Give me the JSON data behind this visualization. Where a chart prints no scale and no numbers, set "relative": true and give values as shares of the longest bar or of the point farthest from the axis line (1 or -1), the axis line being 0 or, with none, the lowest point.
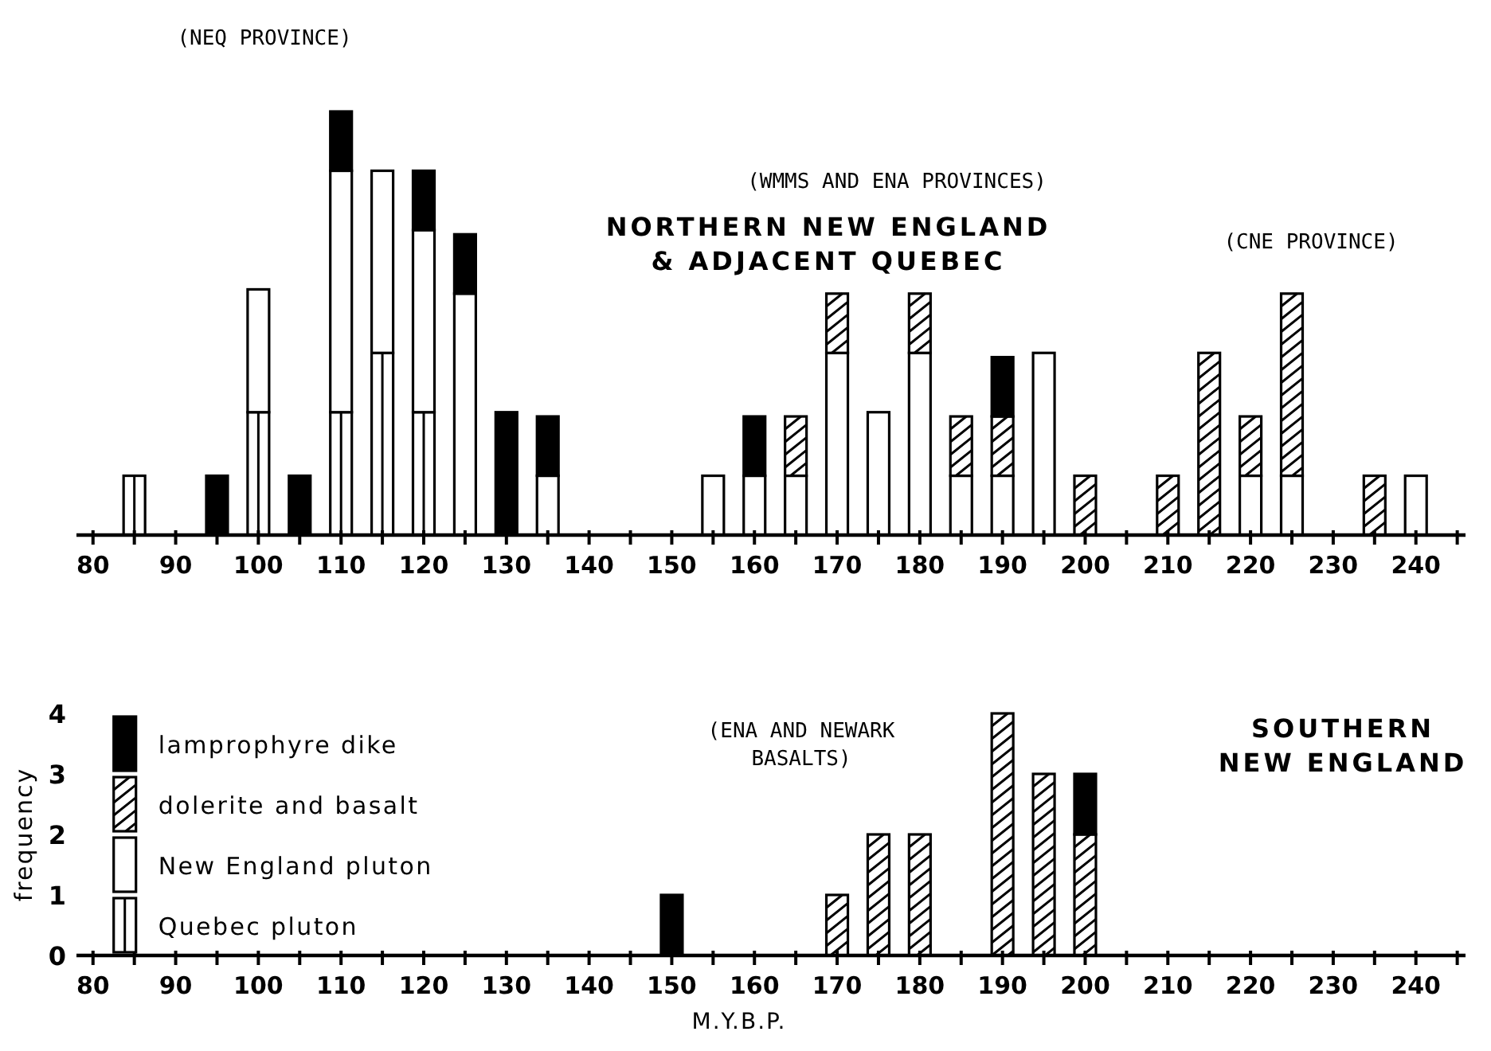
{
  "chart_data": [
    {
      "type": "bar",
      "stacked": true,
      "relative": true,
      "title": "NORTHERN NEW ENGLAND\n& ADJACENT QUEBEC",
      "tick_labels": "x",
      "legend": false,
      "grid": false,
      "x": [
        85,
        95,
        100,
        105,
        110,
        115,
        120,
        125,
        130,
        135,
        155,
        160,
        165,
        170,
        175,
        180,
        185,
        190,
        195,
        200,
        210,
        215,
        220,
        225,
        235,
        240
      ],
      "series": [
        {
          "color": "#ffffff",
          "values": [
            0.14,
            null,
            0.29,
            null,
            0.29,
            0.43,
            0.29,
            null,
            null,
            null,
            null,
            null,
            null,
            null,
            null,
            null,
            null,
            null,
            null,
            null,
            null,
            null,
            null,
            null,
            null,
            null
          ]
        },
        {
          "color": "#ffffff",
          "values": [
            null,
            null,
            0.29,
            null,
            0.57,
            0.43,
            0.43,
            0.57,
            null,
            0.14,
            0.14,
            0.14,
            0.14,
            0.43,
            0.29,
            0.43,
            0.14,
            0.14,
            0.43,
            null,
            null,
            null,
            0.14,
            0.14,
            null,
            0.14
          ]
        },
        {
          "color": "#ffffff",
          "values": [
            null,
            null,
            null,
            null,
            null,
            null,
            null,
            null,
            null,
            null,
            null,
            null,
            0.14,
            0.14,
            null,
            0.14,
            0.14,
            0.14,
            null,
            0.14,
            0.14,
            0.43,
            0.14,
            0.43,
            0.14,
            null
          ]
        },
        {
          "color": "#000000",
          "values": [
            null,
            0.14,
            null,
            0.14,
            0.14,
            null,
            0.14,
            0.14,
            0.29,
            0.14,
            null,
            0.14,
            null,
            null,
            null,
            null,
            null,
            0.14,
            null,
            null,
            null,
            null,
            null,
            null,
            null,
            null
          ]
        }
      ],
      "xlim": [
        78,
        246
      ],
      "xticks": [
        80,
        {
          "value": 85,
          "label": null
        },
        90,
        {
          "value": 95,
          "label": null
        },
        100,
        {
          "value": 105,
          "label": null
        },
        110,
        {
          "value": 115,
          "label": null
        },
        120,
        {
          "value": 125,
          "label": null
        },
        130,
        {
          "value": 135,
          "label": null
        },
        140,
        {
          "value": 145,
          "label": null
        },
        150,
        {
          "value": 155,
          "label": null
        },
        160,
        {
          "value": 165,
          "label": null
        },
        170,
        {
          "value": 175,
          "label": null
        },
        180,
        {
          "value": 185,
          "label": null
        },
        190,
        {
          "value": 195,
          "label": null
        },
        200,
        {
          "value": 205,
          "label": null
        },
        210,
        {
          "value": 215,
          "label": null
        },
        220,
        {
          "value": 225,
          "label": null
        },
        230,
        {
          "value": 235,
          "label": null
        },
        240,
        {
          "value": 245,
          "label": null
        }
      ],
      "annotations": [
        "(NEQ PROVINCE)",
        "(WMMS AND ENA PROVINCES)",
        "(CNE PROVINCE)"
      ]
    },
    {
      "type": "bar",
      "stacked": true,
      "title": "SOUTHERN\nNEW ENGLAND",
      "xlabel": "M.Y.B.P.",
      "ylabel": "frequency",
      "legend": "left",
      "grid": false,
      "x": [
        150,
        170,
        175,
        180,
        190,
        195,
        200
      ],
      "series": [
        {
          "name": "Quebec pluton",
          "color": "#ffffff",
          "values": [
            null,
            null,
            null,
            null,
            null,
            null,
            null
          ]
        },
        {
          "name": "New England pluton",
          "color": "#ffffff",
          "values": [
            null,
            null,
            null,
            null,
            null,
            null,
            null
          ]
        },
        {
          "name": "dolerite and basalt",
          "color": "#ffffff",
          "values": [
            null,
            1,
            2,
            2,
            4,
            3,
            2
          ]
        },
        {
          "name": "lamprophyre dike",
          "color": "#000000",
          "values": [
            1,
            null,
            null,
            null,
            null,
            null,
            1
          ]
        }
      ],
      "xlim": [
        78,
        246
      ],
      "xticks": [
        80,
        {
          "value": 85,
          "label": null
        },
        90,
        {
          "value": 95,
          "label": null
        },
        100,
        {
          "value": 105,
          "label": null
        },
        110,
        {
          "value": 115,
          "label": null
        },
        120,
        {
          "value": 125,
          "label": null
        },
        130,
        {
          "value": 135,
          "label": null
        },
        140,
        {
          "value": 145,
          "label": null
        },
        150,
        {
          "value": 155,
          "label": null
        },
        160,
        {
          "value": 165,
          "label": null
        },
        170,
        {
          "value": 175,
          "label": null
        },
        180,
        {
          "value": 185,
          "label": null
        },
        190,
        {
          "value": 195,
          "label": null
        },
        200,
        {
          "value": 205,
          "label": null
        },
        210,
        {
          "value": 215,
          "label": null
        },
        220,
        {
          "value": 225,
          "label": null
        },
        230,
        {
          "value": 235,
          "label": null
        },
        240,
        {
          "value": 245,
          "label": null
        }
      ],
      "ylim": [
        0,
        4
      ],
      "yticks": [
        0,
        1,
        2,
        3,
        4
      ],
      "annotations": [
        "(ENA AND NEWARK\nBASALTS)"
      ]
    }
  ]
}
